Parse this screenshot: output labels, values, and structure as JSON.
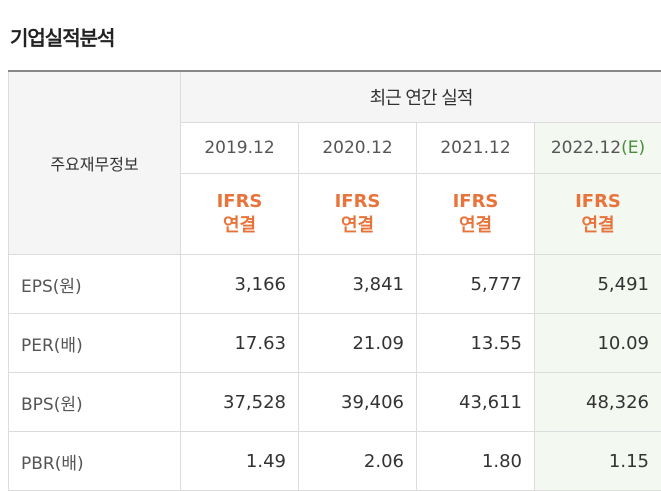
{
  "section_title": "기업실적분석",
  "table": {
    "corner_label": "주요재무정보",
    "group_header": "최근 연간 실적",
    "periods": [
      {
        "label": "2019.12",
        "estimate": ""
      },
      {
        "label": "2020.12",
        "estimate": ""
      },
      {
        "label": "2021.12",
        "estimate": ""
      },
      {
        "label": "2022.12",
        "estimate": "(E)"
      }
    ],
    "basis": [
      {
        "line1": "IFRS",
        "line2": "연결"
      },
      {
        "line1": "IFRS",
        "line2": "연결"
      },
      {
        "line1": "IFRS",
        "line2": "연결"
      },
      {
        "line1": "IFRS",
        "line2": "연결"
      }
    ],
    "rows": [
      {
        "label": "EPS(원)",
        "values": [
          "3,166",
          "3,841",
          "5,777",
          "5,491"
        ]
      },
      {
        "label": "PER(배)",
        "values": [
          "17.63",
          "21.09",
          "13.55",
          "10.09"
        ]
      },
      {
        "label": "BPS(원)",
        "values": [
          "37,528",
          "39,406",
          "43,611",
          "48,326"
        ]
      },
      {
        "label": "PBR(배)",
        "values": [
          "1.49",
          "2.06",
          "1.80",
          "1.15"
        ]
      }
    ],
    "colors": {
      "basis_text": "#e8743b",
      "estimate_highlight": "#f3f8f1",
      "estimate_text": "#4a8f3a"
    }
  }
}
